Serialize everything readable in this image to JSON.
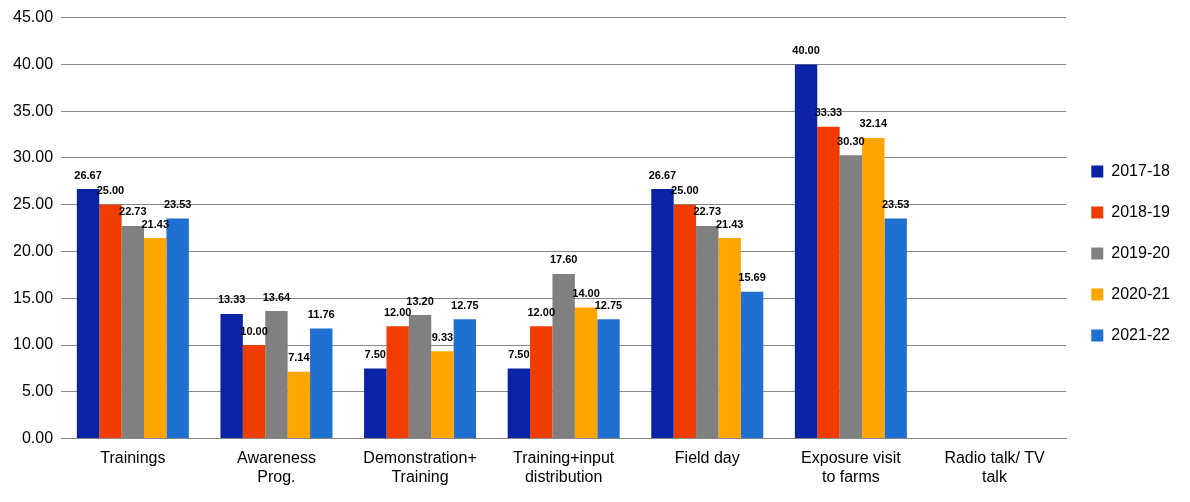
{
  "chart_data": {
    "type": "bar",
    "categories": [
      "Trainings",
      "Awareness Prog.",
      "Demonstration+ Training",
      "Training+input distribution",
      "Field day",
      "Exposure visit to farms",
      "Radio talk/ TV talk"
    ],
    "series": [
      {
        "name": "2017-18",
        "color": "#0a22a6",
        "values": [
          26.67,
          13.33,
          7.5,
          7.5,
          26.67,
          40,
          null
        ],
        "value_labels": [
          "26.67",
          "13.33",
          "7.50",
          "7.50",
          "26.67",
          "40.00",
          null
        ]
      },
      {
        "name": "2018-19",
        "color": "#f03c00",
        "values": [
          25,
          10,
          12,
          12,
          25,
          33.33,
          null
        ],
        "value_labels": [
          "25.00",
          "10.00",
          "12.00",
          "12.00",
          "25.00",
          "33.33",
          null
        ]
      },
      {
        "name": "2019-20",
        "color": "#808080",
        "values": [
          22.73,
          13.64,
          13.2,
          17.6,
          22.73,
          30.3,
          null
        ],
        "value_labels": [
          "22.73",
          "13.64",
          "13.20",
          "17.60",
          "22.73",
          "30.30",
          null
        ]
      },
      {
        "name": "2020-21",
        "color": "#ffa500",
        "values": [
          21.43,
          7.14,
          9.33,
          14,
          21.43,
          32.14,
          null
        ],
        "value_labels": [
          "21.43",
          "7.14",
          "9.33",
          "14.00",
          "21.43",
          "32.14",
          null
        ]
      },
      {
        "name": "2021-22",
        "color": "#1f70d0",
        "values": [
          23.53,
          11.76,
          12.75,
          12.75,
          15.69,
          23.53,
          null
        ],
        "value_labels": [
          "23.53",
          "11.76",
          "12.75",
          "12.75",
          "15.69",
          "23.53",
          null
        ]
      }
    ],
    "ylim": [
      0,
      45
    ],
    "yticks": [
      {
        "value": 0,
        "label": "0.00"
      },
      {
        "value": 5,
        "label": "5.00"
      },
      {
        "value": 10,
        "label": "10.00"
      },
      {
        "value": 15,
        "label": "15.00"
      },
      {
        "value": 20,
        "label": "20.00"
      },
      {
        "value": 25,
        "label": "25.00"
      },
      {
        "value": 30,
        "label": "30.00"
      },
      {
        "value": 35,
        "label": "35.00"
      },
      {
        "value": 40,
        "label": "40.00"
      },
      {
        "value": 45,
        "label": "45.00"
      }
    ],
    "grid": "y",
    "legend": "right"
  }
}
